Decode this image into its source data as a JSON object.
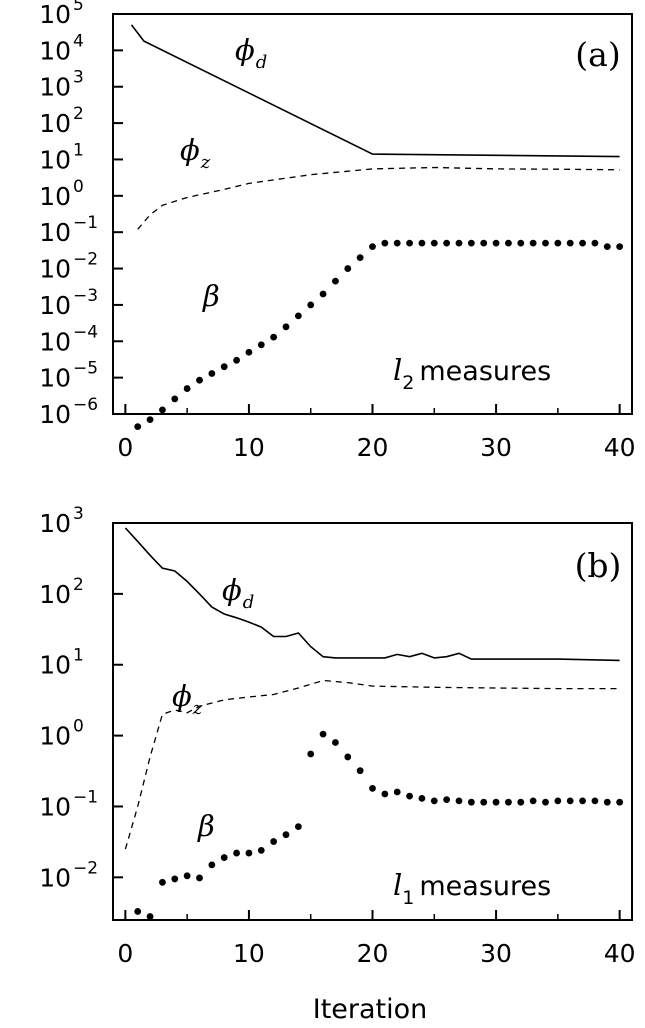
{
  "chart_data": [
    {
      "type": "line",
      "panel_label": "(a)",
      "annotation": "measures",
      "annotation_symbol": "l",
      "annotation_subscript": "2",
      "yscale": "log",
      "xlim": [
        -1,
        41
      ],
      "ylim": [
        1e-06,
        100000.0
      ],
      "x_ticks": [
        0,
        10,
        20,
        30,
        40
      ],
      "y_ticks": [
        {
          "mantissa": "10",
          "exp": "5",
          "value": 100000
        },
        {
          "mantissa": "10",
          "exp": "4",
          "value": 10000
        },
        {
          "mantissa": "10",
          "exp": "3",
          "value": 1000
        },
        {
          "mantissa": "10",
          "exp": "2",
          "value": 100
        },
        {
          "mantissa": "10",
          "exp": "1",
          "value": 10
        },
        {
          "mantissa": "10",
          "exp": "0",
          "value": 1
        },
        {
          "mantissa": "10",
          "exp": "−1",
          "value": 0.1
        },
        {
          "mantissa": "10",
          "exp": "−2",
          "value": 0.01
        },
        {
          "mantissa": "10",
          "exp": "−3",
          "value": 0.001
        },
        {
          "mantissa": "10",
          "exp": "−4",
          "value": 0.0001
        },
        {
          "mantissa": "10",
          "exp": "−5",
          "value": 1e-05
        },
        {
          "mantissa": "10",
          "exp": "−6",
          "value": 1e-06
        }
      ],
      "series": [
        {
          "symbol": "ϕ",
          "subscript": "d",
          "style": "solid",
          "x": [
            0.5,
            1.5,
            20,
            40
          ],
          "y": [
            50000,
            18000,
            14,
            12
          ]
        },
        {
          "symbol": "ϕ",
          "subscript": "z",
          "style": "dashed",
          "x": [
            1,
            2,
            3,
            5,
            8,
            10,
            15,
            20,
            25,
            30,
            35,
            40
          ],
          "y": [
            0.12,
            0.3,
            0.55,
            0.9,
            1.5,
            2.2,
            3.8,
            5.5,
            6,
            5.5,
            5.4,
            5.2
          ]
        },
        {
          "symbol": "β",
          "subscript": "",
          "style": "dotted",
          "x": [
            1,
            2,
            3,
            4,
            5,
            6,
            7,
            8,
            9,
            10,
            11,
            12,
            13,
            14,
            15,
            16,
            17,
            18,
            19,
            20,
            21,
            22,
            23,
            24,
            25,
            26,
            27,
            28,
            29,
            30,
            31,
            32,
            33,
            34,
            35,
            36,
            37,
            38,
            39,
            40
          ],
          "y": [
            4.5e-07,
            7e-07,
            1.3e-06,
            2.6e-06,
            5e-06,
            8.5e-06,
            1.3e-05,
            2e-05,
            3e-05,
            5e-05,
            8e-05,
            0.00013,
            0.00025,
            0.0005,
            0.001,
            0.002,
            0.0045,
            0.01,
            0.02,
            0.04,
            0.05,
            0.05,
            0.05,
            0.05,
            0.05,
            0.05,
            0.05,
            0.05,
            0.05,
            0.05,
            0.05,
            0.05,
            0.05,
            0.05,
            0.05,
            0.05,
            0.05,
            0.05,
            0.04,
            0.04
          ]
        }
      ]
    },
    {
      "type": "line",
      "panel_label": "(b)",
      "annotation": "measures",
      "annotation_symbol": "l",
      "annotation_subscript": "1",
      "xlabel": "Iteration",
      "yscale": "log",
      "xlim": [
        -1,
        41
      ],
      "ylim": [
        0.0025,
        1000
      ],
      "x_ticks": [
        0,
        10,
        20,
        30,
        40
      ],
      "y_ticks": [
        {
          "mantissa": "10",
          "exp": "3",
          "value": 1000
        },
        {
          "mantissa": "10",
          "exp": "2",
          "value": 100
        },
        {
          "mantissa": "10",
          "exp": "1",
          "value": 10
        },
        {
          "mantissa": "10",
          "exp": "0",
          "value": 1
        },
        {
          "mantissa": "10",
          "exp": "−1",
          "value": 0.1
        },
        {
          "mantissa": "10",
          "exp": "−2",
          "value": 0.01
        }
      ],
      "series": [
        {
          "symbol": "ϕ",
          "subscript": "d",
          "style": "solid",
          "x": [
            0,
            1,
            2,
            3,
            4,
            5,
            6,
            7,
            8,
            9,
            10,
            11,
            12,
            13,
            14,
            15,
            16,
            17,
            18,
            19,
            20,
            21,
            22,
            23,
            24,
            25,
            26,
            27,
            28,
            29,
            30,
            35,
            40
          ],
          "y": [
            850,
            550,
            350,
            230,
            210,
            150,
            100,
            65,
            52,
            46,
            40,
            34,
            25,
            25,
            28,
            18,
            13,
            12.5,
            12.5,
            12.5,
            12.5,
            12.5,
            14,
            13,
            14.5,
            12.5,
            13,
            14.5,
            12,
            12,
            12,
            12,
            11.5
          ]
        },
        {
          "symbol": "ϕ",
          "subscript": "z",
          "style": "dashed",
          "x": [
            0,
            1,
            2,
            3,
            4,
            5,
            6,
            8,
            10,
            12,
            14,
            16,
            18,
            20,
            25,
            30,
            35,
            40
          ],
          "y": [
            0.025,
            0.1,
            0.5,
            2.0,
            2.3,
            2.1,
            2.6,
            3.2,
            3.5,
            3.8,
            4.7,
            6.0,
            5.6,
            5.0,
            4.8,
            4.7,
            4.6,
            4.6
          ]
        },
        {
          "symbol": "β",
          "subscript": "",
          "style": "dotted",
          "x": [
            1,
            2,
            3,
            4,
            5,
            6,
            7,
            8,
            9,
            10,
            11,
            12,
            13,
            14,
            15,
            16,
            17,
            18,
            19,
            20,
            21,
            22,
            23,
            24,
            25,
            26,
            27,
            28,
            29,
            30,
            31,
            32,
            33,
            34,
            35,
            36,
            37,
            38,
            39,
            40
          ],
          "y": [
            0.0033,
            0.0028,
            0.0085,
            0.0095,
            0.0105,
            0.0098,
            0.015,
            0.019,
            0.022,
            0.022,
            0.024,
            0.032,
            0.04,
            0.052,
            0.55,
            1.05,
            0.8,
            0.5,
            0.32,
            0.18,
            0.15,
            0.16,
            0.14,
            0.13,
            0.12,
            0.125,
            0.12,
            0.115,
            0.115,
            0.115,
            0.115,
            0.115,
            0.12,
            0.115,
            0.12,
            0.12,
            0.12,
            0.12,
            0.115,
            0.115
          ]
        }
      ]
    }
  ]
}
